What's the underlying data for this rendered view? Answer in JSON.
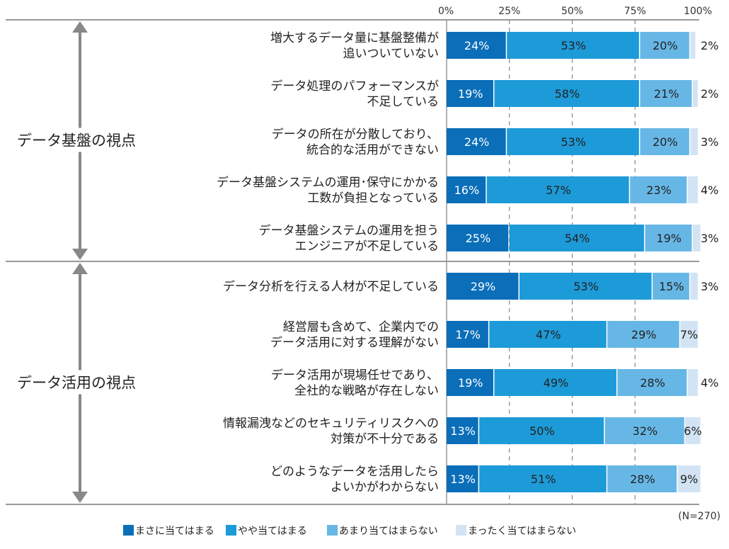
{
  "chart_data": {
    "type": "bar",
    "orientation": "horizontal",
    "stacked": true,
    "x_ticks": [
      "0%",
      "25%",
      "50%",
      "75%",
      "100%"
    ],
    "xlim": [
      0,
      100
    ],
    "note": "(N=270)",
    "groups": [
      {
        "label": "データ基盤の視点",
        "rows": [
          0,
          4
        ]
      },
      {
        "label": "データ活用の視点",
        "rows": [
          5,
          9
        ]
      }
    ],
    "categories": [
      [
        "増大するデータ量に基盤整備が",
        "追いついていない"
      ],
      [
        "データ処理のパフォーマンスが",
        "不足している"
      ],
      [
        "データの所在が分散しており、",
        "統合的な活用ができない"
      ],
      [
        "データ基盤システムの運用･保守にかかる",
        "工数が負担となっている"
      ],
      [
        "データ基盤システムの運用を担う",
        "エンジニアが不足している"
      ],
      [
        "データ分析を行える人材が不足している"
      ],
      [
        "経営層も含めて、企業内での",
        "データ活用に対する理解がない"
      ],
      [
        "データ活用が現場任せであり、",
        "全社的な戦略が存在しない"
      ],
      [
        "情報漏洩などのセキュリティリスクへの",
        "対策が不十分である"
      ],
      [
        "どのようなデータを活用したら",
        "よいかがわからない"
      ]
    ],
    "series": [
      {
        "name": "まさに当てはまる",
        "color": "#0a6eb9",
        "text_color": "#ffffff",
        "label_pos": "inside",
        "values": [
          24,
          19,
          24,
          16,
          25,
          29,
          17,
          19,
          13,
          13
        ],
        "labels": [
          "24%",
          "19%",
          "24%",
          "16%",
          "25%",
          "29%",
          "17%",
          "19%",
          "13%",
          "13%"
        ]
      },
      {
        "name": "やや当てはまる",
        "color": "#1d9ad8",
        "text_color": "#222222",
        "label_pos": "inside",
        "values": [
          53,
          58,
          53,
          57,
          54,
          53,
          47,
          49,
          50,
          51
        ],
        "labels": [
          "53%",
          "58%",
          "53%",
          "57%",
          "54%",
          "53%",
          "47%",
          "49%",
          "50%",
          "51%"
        ]
      },
      {
        "name": "あまり当てはまらない",
        "color": "#67b7e6",
        "text_color": "#222222",
        "label_pos": "inside",
        "values": [
          20,
          21,
          20,
          23,
          19,
          15,
          29,
          28,
          32,
          28
        ],
        "labels": [
          "20%",
          "21%",
          "20%",
          "23%",
          "19%",
          "15%",
          "29%",
          "28%",
          "32%",
          "28%"
        ]
      },
      {
        "name": "まったく当てはまらない",
        "color": "#d2e4f4",
        "text_color": "#222222",
        "label_pos": "auto",
        "values": [
          2,
          2,
          3,
          4,
          3,
          3,
          7,
          4,
          6,
          9
        ],
        "labels": [
          "2%",
          "2%",
          "3%",
          "4%",
          "3%",
          "3%",
          "7%",
          "4%",
          "6%",
          "9%"
        ]
      }
    ]
  }
}
